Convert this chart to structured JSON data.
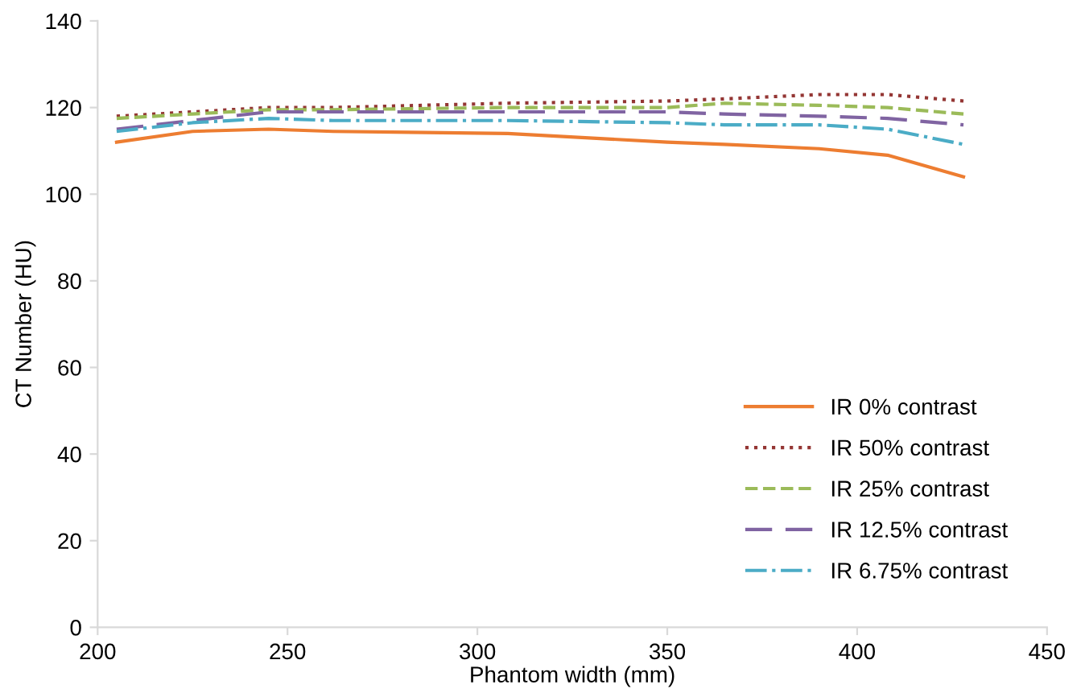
{
  "chart_data": {
    "type": "line",
    "xlabel": "Phantom width (mm)",
    "ylabel": "CT Number (HU)",
    "x": [
      205,
      225,
      245,
      262,
      308,
      350,
      365,
      390,
      408,
      428
    ],
    "xlim": [
      200,
      450
    ],
    "xticks": [
      200,
      250,
      300,
      350,
      400,
      450
    ],
    "ylim": [
      0,
      140
    ],
    "yticks": [
      0,
      20,
      40,
      60,
      80,
      100,
      120,
      140
    ],
    "grid": false,
    "legend": "bottom right",
    "marker": "none",
    "series": [
      {
        "name": "IR 0% contrast",
        "color": "#ed7d31",
        "line_style": "solid",
        "values": [
          112,
          114.5,
          115,
          114.5,
          114,
          112,
          111.5,
          110.5,
          109,
          104
        ]
      },
      {
        "name": "IR 50% contrast",
        "color": "#943634",
        "line_style": "dotted",
        "values": [
          118,
          119,
          120,
          120,
          121,
          121.5,
          122,
          123,
          123,
          121.5
        ]
      },
      {
        "name": "IR 25% contrast",
        "color": "#9bbb59",
        "line_style": "dashed",
        "values": [
          117.5,
          118.5,
          119.5,
          119.5,
          120,
          120,
          121,
          120.5,
          120,
          118.5
        ]
      },
      {
        "name": "IR 12.5% contrast",
        "color": "#8064a2",
        "line_style": "longdash",
        "values": [
          115,
          117,
          119,
          119,
          119,
          119,
          118.5,
          118,
          117.5,
          116
        ]
      },
      {
        "name": "IR 6.75% contrast",
        "color": "#4bacc6",
        "line_style": "dashdot",
        "values": [
          114.5,
          116.5,
          117.5,
          117,
          117,
          116.5,
          116,
          116,
          115,
          111.5
        ]
      }
    ]
  }
}
